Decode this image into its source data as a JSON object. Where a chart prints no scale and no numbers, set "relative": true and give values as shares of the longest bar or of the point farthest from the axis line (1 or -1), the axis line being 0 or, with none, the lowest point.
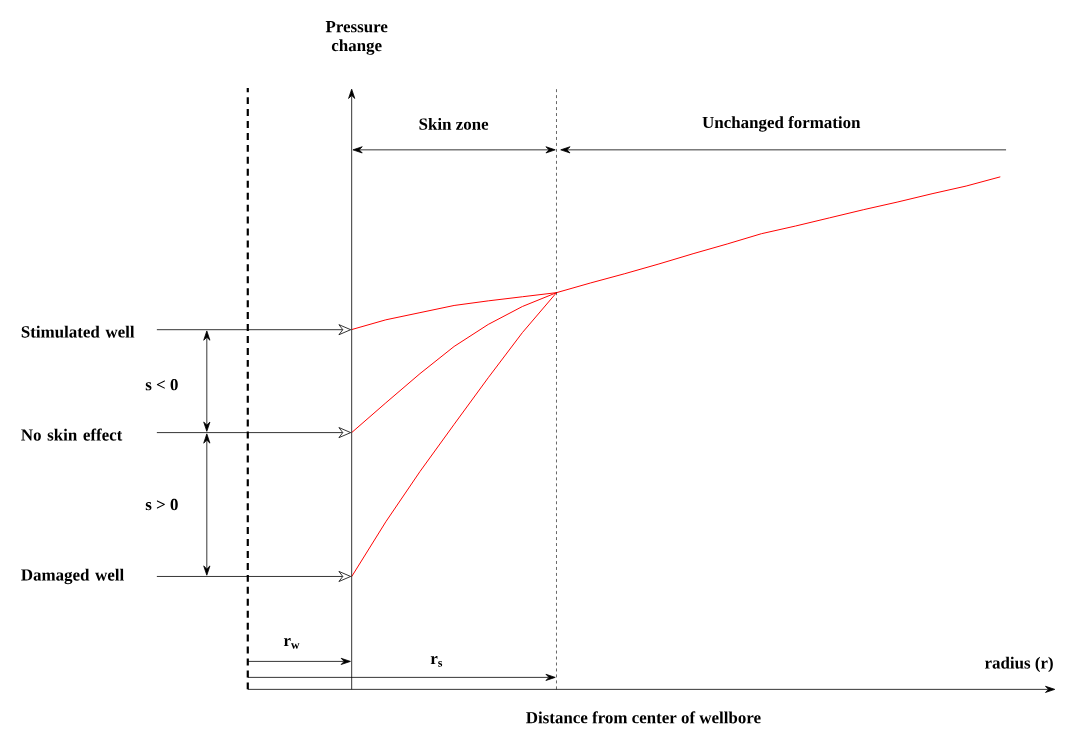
{
  "chart_data": {
    "type": "line",
    "relative": true,
    "xlabel": "radius (r)",
    "categories": [
      null,
      null,
      null,
      null,
      null,
      null,
      null,
      null,
      null,
      null,
      null,
      null,
      null,
      null,
      null,
      null,
      null,
      null,
      null,
      null
    ],
    "series": [
      {
        "color": "#ff0000",
        "values": [
          0.702,
          0.721,
          0.735,
          0.749,
          0.758,
          0.766,
          0.774,
          0.793,
          0.811,
          0.83,
          0.85,
          0.869,
          0.889,
          0.904,
          0.92,
          0.936,
          0.951,
          0.967,
          0.982,
          1.0
        ]
      },
      {
        "color": "#ff0000",
        "values": [
          0.501,
          0.559,
          0.616,
          0.669,
          0.712,
          0.747,
          0.774,
          null,
          null,
          null,
          null,
          null,
          null,
          null,
          null,
          null,
          null,
          null,
          null,
          null
        ]
      },
      {
        "color": "#ff0000",
        "values": [
          0.22,
          0.327,
          0.425,
          0.517,
          0.608,
          0.696,
          0.774,
          null,
          null,
          null,
          null,
          null,
          null,
          null,
          null,
          null,
          null,
          null,
          null,
          null
        ]
      }
    ],
    "annotations": [
      "Skin zone",
      "Unchanged formation",
      "Stimulated well",
      "No skin effect",
      "Damaged well",
      "s < 0",
      "s > 0",
      "r$_{w}$",
      "r$_{s}$",
      "Distance from center of wellbore",
      "Pressure change"
    ],
    "marker": "none",
    "line_style": "solid"
  }
}
